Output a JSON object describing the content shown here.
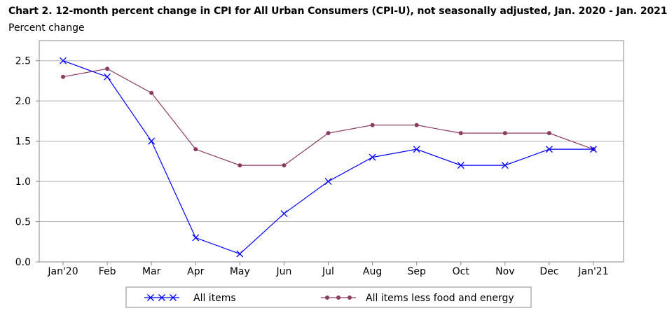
{
  "chart_data": {
    "type": "line",
    "title": "Chart 2. 12-month percent change in CPI for All Urban Consumers (CPI-U), not seasonally adjusted, Jan. 2020 - Jan. 2021",
    "ylabel": "Percent change",
    "categories": [
      "Jan'20",
      "Feb",
      "Mar",
      "Apr",
      "May",
      "Jun",
      "Jul",
      "Aug",
      "Sep",
      "Oct",
      "Nov",
      "Dec",
      "Jan'21"
    ],
    "ylim": [
      0,
      2.75
    ],
    "yticks": [
      "0.0",
      "0.5",
      "1.0",
      "1.5",
      "2.0",
      "2.5"
    ],
    "grid": true,
    "legend_position": "bottom",
    "series": [
      {
        "name": "All items",
        "color": "#0000ff",
        "marker": "x",
        "values": [
          2.5,
          2.3,
          1.5,
          0.3,
          0.1,
          0.6,
          1.0,
          1.3,
          1.4,
          1.2,
          1.2,
          1.4,
          1.4
        ]
      },
      {
        "name": "All items less food and energy",
        "color": "#8b3a62",
        "marker": "circle",
        "values": [
          2.3,
          2.4,
          2.1,
          1.4,
          1.2,
          1.2,
          1.6,
          1.7,
          1.7,
          1.6,
          1.6,
          1.6,
          1.4
        ]
      }
    ]
  }
}
